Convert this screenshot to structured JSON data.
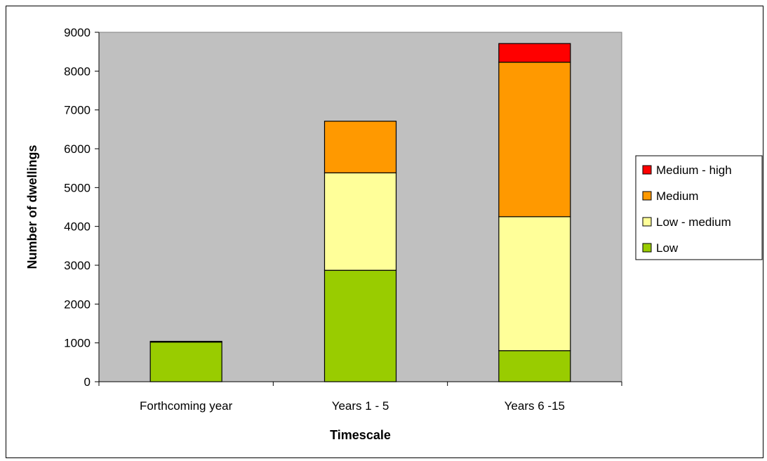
{
  "chart_data": {
    "type": "bar",
    "stacked": true,
    "title": "",
    "xlabel": "Timescale",
    "ylabel": "Number of dwellings",
    "ylim": [
      0,
      9000
    ],
    "yticks": [
      0,
      1000,
      2000,
      3000,
      4000,
      5000,
      6000,
      7000,
      8000,
      9000
    ],
    "categories": [
      "Forthcoming year",
      "Years 1 - 5",
      "Years 6 -15"
    ],
    "series": [
      {
        "name": "Low",
        "color": "#99cc00",
        "values": [
          1020,
          2870,
          800
        ]
      },
      {
        "name": "Low - medium",
        "color": "#ffff99",
        "values": [
          0,
          2510,
          3450
        ]
      },
      {
        "name": "Medium",
        "color": "#ff9900",
        "values": [
          20,
          1330,
          3980
        ]
      },
      {
        "name": "Medium - high",
        "color": "#ff0000",
        "values": [
          0,
          0,
          480
        ]
      }
    ],
    "legend_order": [
      "Medium - high",
      "Medium",
      "Low - medium",
      "Low"
    ],
    "legend_position": "right",
    "plot_background": "#c0c0c0",
    "grid": false
  }
}
